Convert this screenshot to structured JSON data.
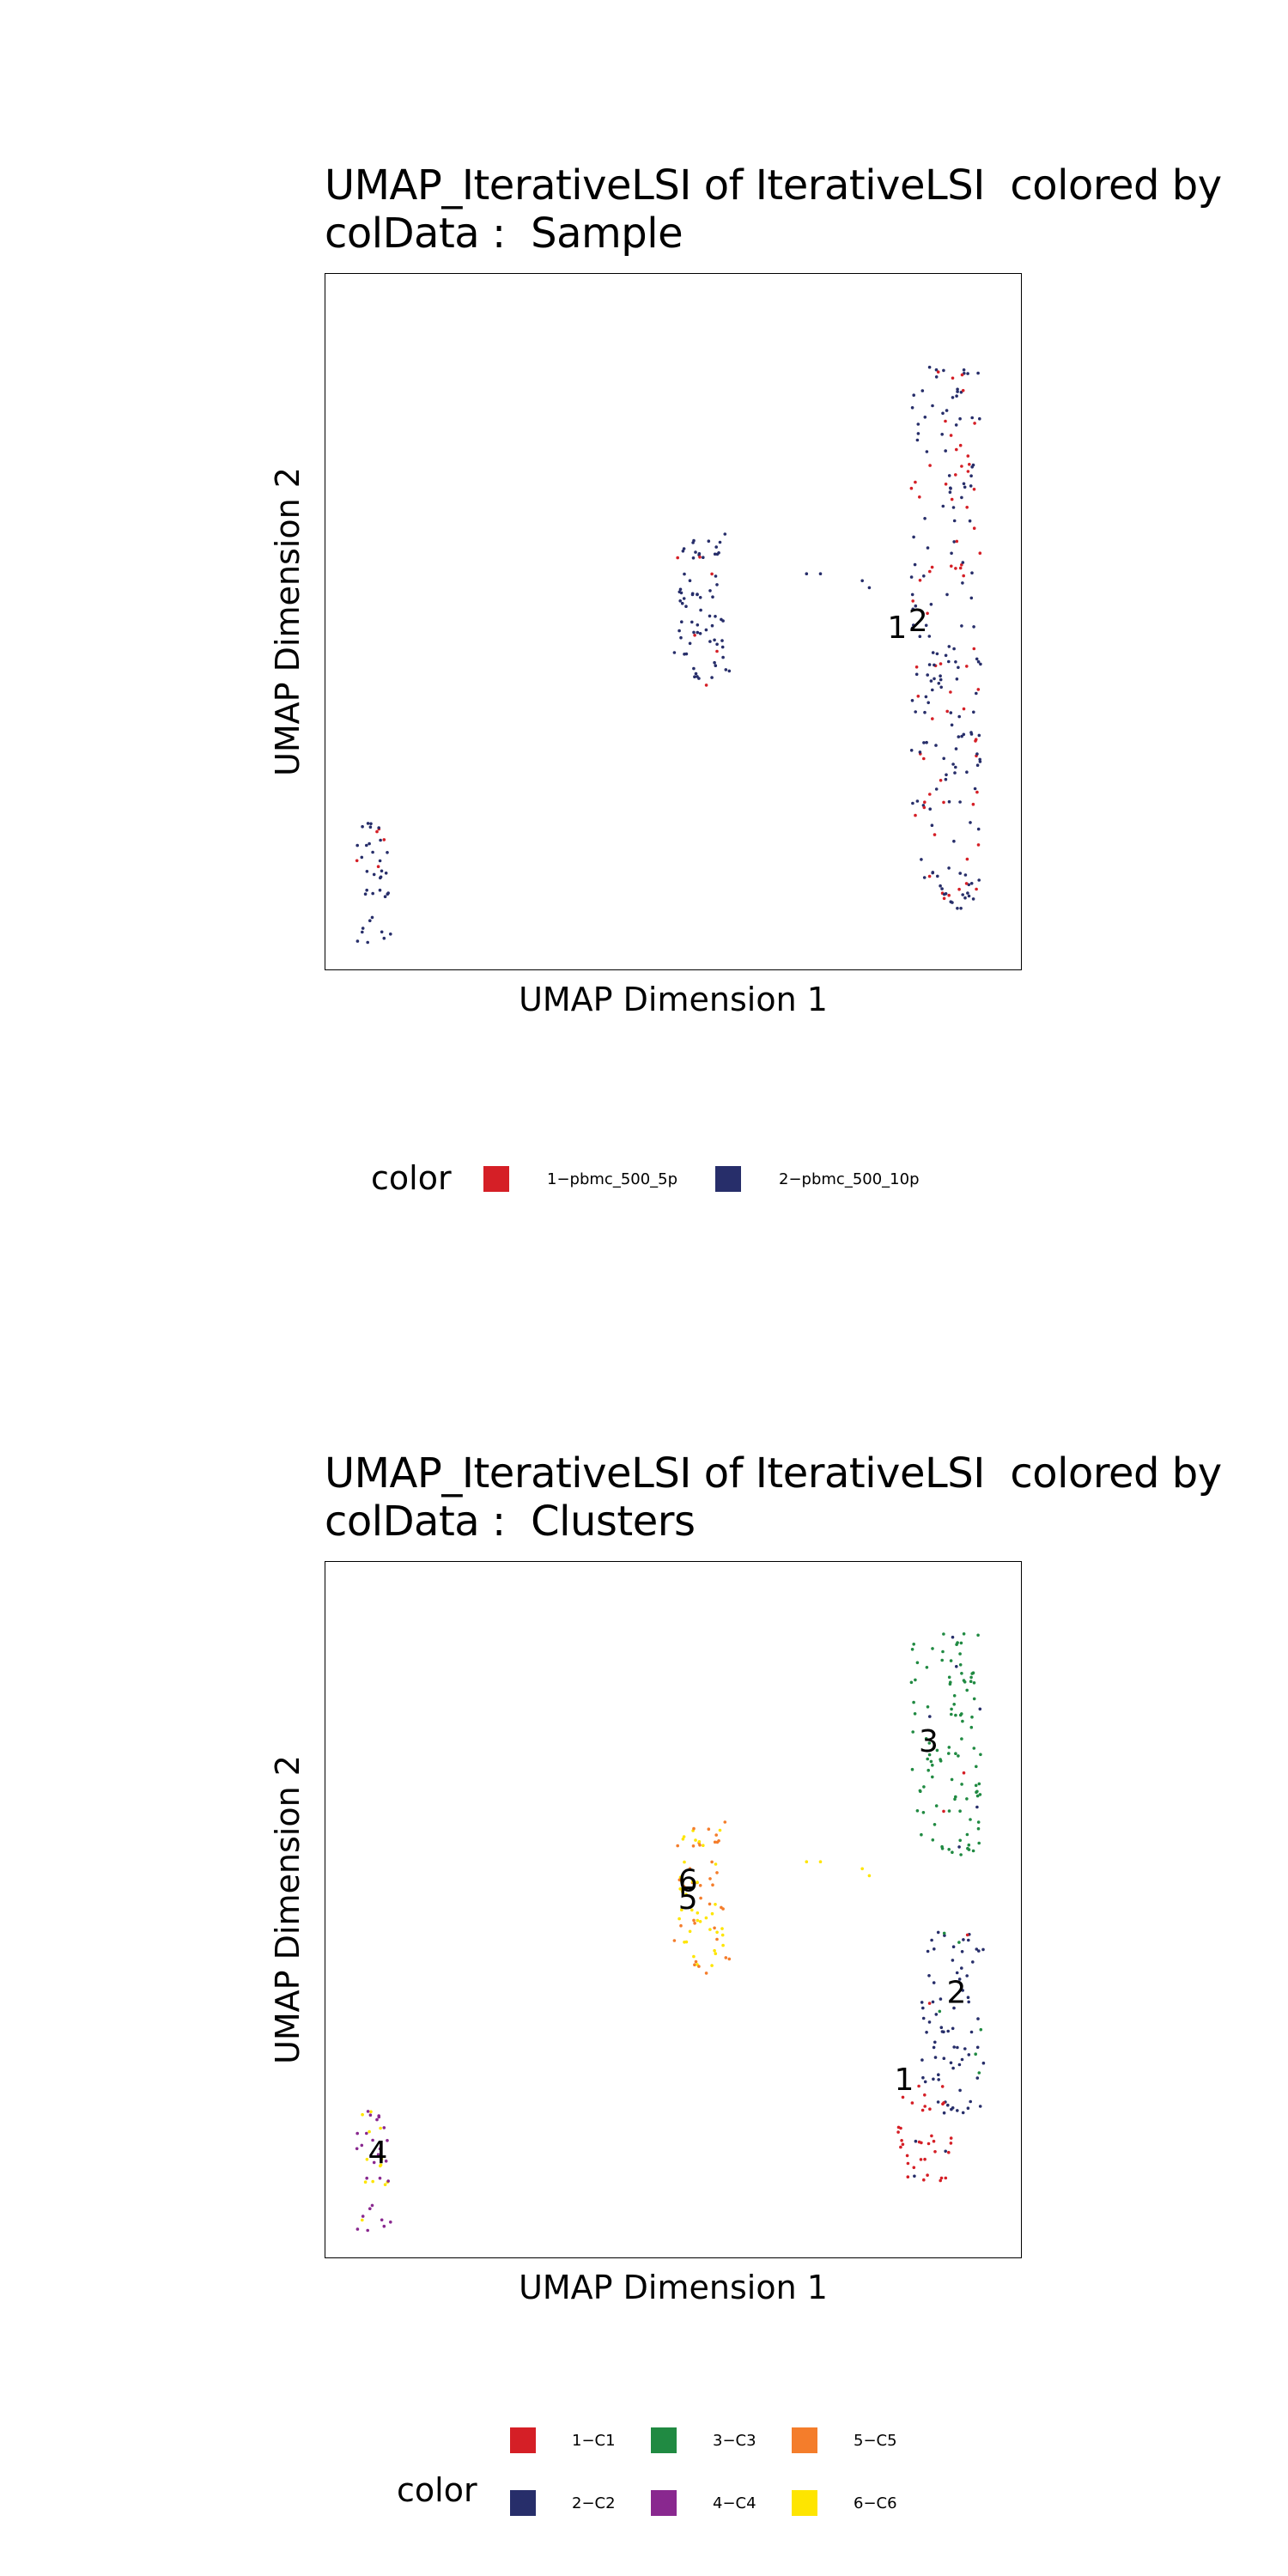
{
  "chart_data": [
    {
      "type": "scatter",
      "title": "UMAP_IterativeLSI of IterativeLSI  colored by\ncolData :  Sample",
      "xlabel": "UMAP Dimension 1",
      "ylabel": "UMAP Dimension 2",
      "grid": false,
      "legend_position": "bottom",
      "legend_title": "color",
      "series": [
        {
          "name": "1−pbmc_500_5p",
          "color": "#D51F26"
        },
        {
          "name": "2−pbmc_500_10p",
          "color": "#272E6A"
        }
      ],
      "clusters": [
        {
          "center": [
            0.07,
            0.13
          ],
          "spread": [
            0.025,
            0.09
          ],
          "count": 40,
          "share": [
            0.15,
            0.85
          ]
        },
        {
          "center": [
            0.54,
            0.52
          ],
          "spread": [
            0.04,
            0.11
          ],
          "count": 75,
          "share": [
            0.12,
            0.88
          ]
        },
        {
          "center": [
            0.89,
            0.48
          ],
          "spread": [
            0.05,
            0.39
          ],
          "count": 230,
          "share": [
            0.3,
            0.7
          ]
        }
      ],
      "annotations": [
        {
          "text": "1",
          "x": 0.82,
          "y": 0.49
        },
        {
          "text": "2",
          "x": 0.85,
          "y": 0.5
        }
      ]
    },
    {
      "type": "scatter",
      "title": "UMAP_IterativeLSI of IterativeLSI  colored by\ncolData :  Clusters",
      "xlabel": "UMAP Dimension 1",
      "ylabel": "UMAP Dimension 2",
      "grid": false,
      "legend_position": "bottom",
      "legend_title": "color",
      "series": [
        {
          "name": "1−C1",
          "color": "#D51F26"
        },
        {
          "name": "2−C2",
          "color": "#272E6A"
        },
        {
          "name": "3−C3",
          "color": "#208A42"
        },
        {
          "name": "4−C4",
          "color": "#89288F"
        },
        {
          "name": "5−C5",
          "color": "#F47D2B"
        },
        {
          "name": "6−C6",
          "color": "#FEE500"
        }
      ],
      "clusters": [
        {
          "center": [
            0.07,
            0.13
          ],
          "spread": [
            0.025,
            0.09
          ],
          "count": 40,
          "share": [
            0,
            0,
            0,
            0.75,
            0,
            0.25
          ]
        },
        {
          "center": [
            0.54,
            0.52
          ],
          "spread": [
            0.04,
            0.11
          ],
          "count": 75,
          "share": [
            0,
            0,
            0,
            0,
            0.5,
            0.5
          ]
        },
        {
          "center": [
            0.89,
            0.74
          ],
          "spread": [
            0.05,
            0.16
          ],
          "count": 110,
          "share": [
            0.02,
            0.08,
            0.9,
            0,
            0,
            0
          ]
        },
        {
          "center": [
            0.9,
            0.34
          ],
          "spread": [
            0.045,
            0.13
          ],
          "count": 80,
          "share": [
            0.05,
            0.9,
            0.05,
            0,
            0,
            0
          ]
        },
        {
          "center": [
            0.86,
            0.18
          ],
          "spread": [
            0.04,
            0.07
          ],
          "count": 40,
          "share": [
            0.85,
            0.15,
            0,
            0,
            0,
            0
          ]
        }
      ],
      "annotations": [
        {
          "text": "3",
          "x": 0.865,
          "y": 0.74
        },
        {
          "text": "6",
          "x": 0.52,
          "y": 0.54
        },
        {
          "text": "5",
          "x": 0.52,
          "y": 0.515
        },
        {
          "text": "2",
          "x": 0.905,
          "y": 0.38
        },
        {
          "text": "1",
          "x": 0.83,
          "y": 0.255
        },
        {
          "text": "4",
          "x": 0.075,
          "y": 0.15
        }
      ]
    }
  ]
}
